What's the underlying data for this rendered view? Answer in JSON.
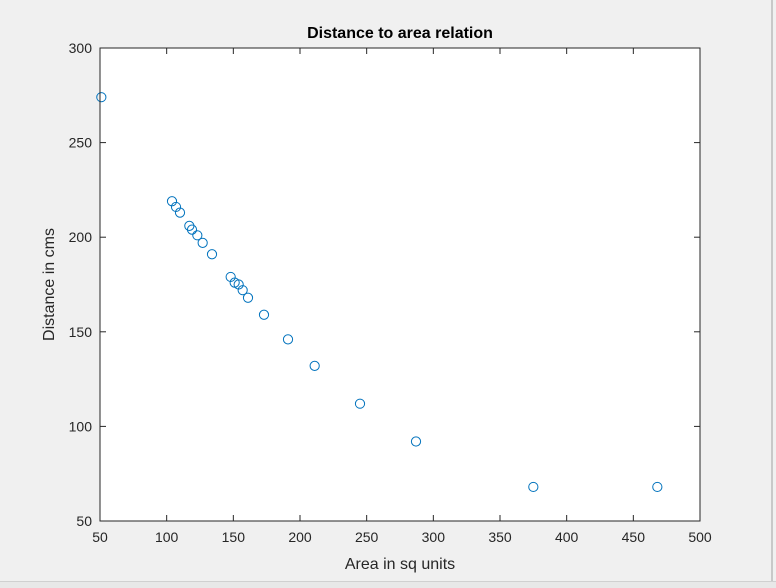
{
  "figure": {
    "background": "#f0f0f0",
    "axes_background": "#ffffff",
    "marker_color": "#0072bd",
    "axis_color": "#262626"
  },
  "chart_data": {
    "type": "scatter",
    "title": "Distance to area relation",
    "xlabel": "Area in sq units",
    "ylabel": "Distance in cms",
    "xlim": [
      50,
      500
    ],
    "ylim": [
      50,
      300
    ],
    "xticks": [
      50,
      100,
      150,
      200,
      250,
      300,
      350,
      400,
      450,
      500
    ],
    "yticks": [
      50,
      100,
      150,
      200,
      250,
      300
    ],
    "grid": false,
    "marker": "open-circle",
    "series": [
      {
        "x": [
          51,
          104,
          107,
          110,
          117,
          119,
          123,
          127,
          134,
          148,
          151,
          154,
          157,
          161,
          173,
          191,
          211,
          245,
          287,
          375,
          468
        ],
        "y": [
          274,
          219,
          216,
          213,
          206,
          204,
          201,
          197,
          191,
          179,
          176,
          175,
          172,
          168,
          159,
          146,
          132,
          112,
          92,
          68,
          68
        ]
      }
    ]
  }
}
